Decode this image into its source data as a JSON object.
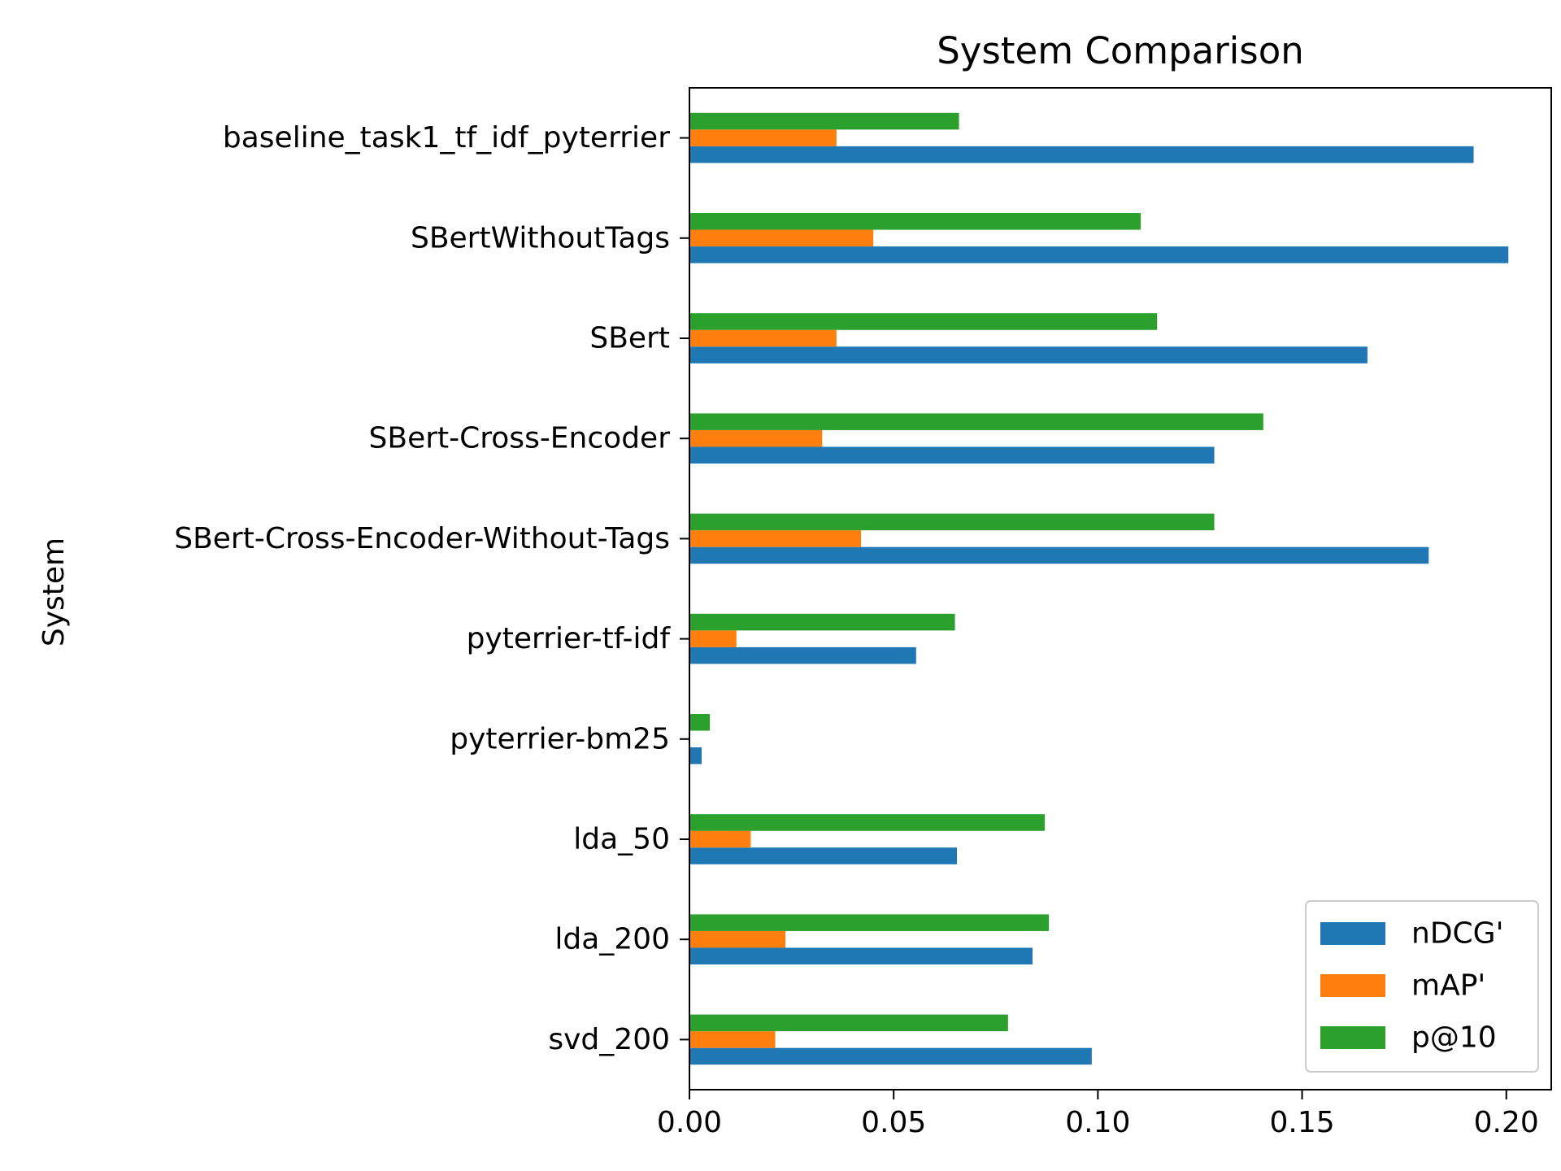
{
  "chart_data": {
    "type": "bar",
    "orientation": "horizontal",
    "title": "System Comparison",
    "ylabel": "System",
    "xlabel": "",
    "categories": [
      "baseline_task1_tf_idf_pyterrier",
      "SBertWithoutTags",
      "SBert",
      "SBert-Cross-Encoder",
      "SBert-Cross-Encoder-Without-Tags",
      "pyterrier-tf-idf",
      "pyterrier-bm25",
      "lda_50",
      "lda_200",
      "svd_200"
    ],
    "series": [
      {
        "name": "nDCG'",
        "color": "#1f77b4",
        "values": [
          0.192,
          0.2005,
          0.166,
          0.1285,
          0.181,
          0.0555,
          0.003,
          0.0655,
          0.084,
          0.0985
        ]
      },
      {
        "name": "mAP'",
        "color": "#ff7f0e",
        "values": [
          0.036,
          0.045,
          0.036,
          0.0325,
          0.042,
          0.0115,
          0.0,
          0.015,
          0.0235,
          0.021
        ]
      },
      {
        "name": "p@10",
        "color": "#2ca02c",
        "values": [
          0.066,
          0.1105,
          0.1145,
          0.1405,
          0.1285,
          0.065,
          0.005,
          0.087,
          0.088,
          0.078
        ]
      }
    ],
    "xlim": [
      0,
      0.211
    ],
    "xticks": [
      0.0,
      0.05,
      0.1,
      0.15,
      0.2
    ],
    "xtick_labels": [
      "0.00",
      "0.05",
      "0.10",
      "0.15",
      "0.20"
    ],
    "grid": false,
    "legend_position": "lower-right"
  }
}
